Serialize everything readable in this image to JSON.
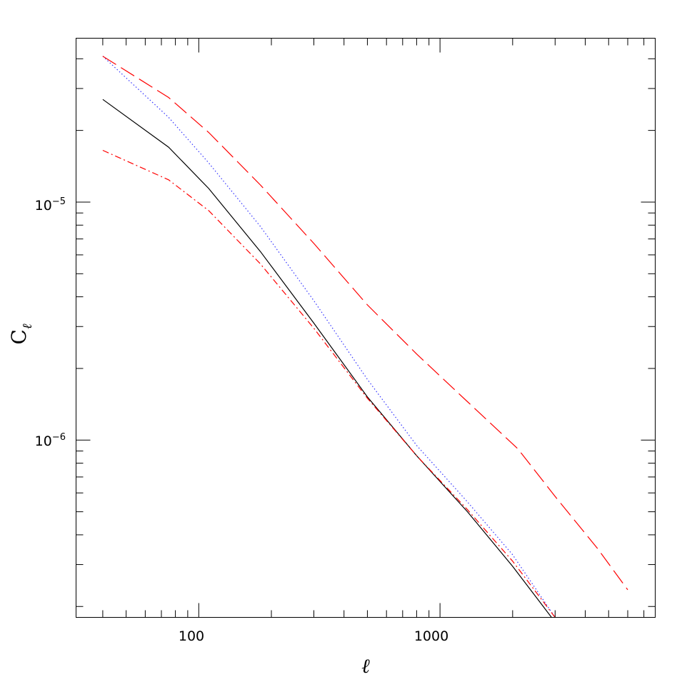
{
  "chart_data": {
    "type": "line",
    "title": "",
    "xlabel": "ℓ",
    "ylabel_main": "C",
    "ylabel_sub": "ℓ",
    "xscale": "log",
    "yscale": "log",
    "xlim": [
      31,
      7800
    ],
    "ylim": [
      1.8e-07,
      4.88e-05
    ],
    "x_tick_labels": [
      {
        "value": 100,
        "label": "100"
      },
      {
        "value": 1000,
        "label": "1000"
      }
    ],
    "y_tick_labels": [
      {
        "value": 1e-05,
        "base": "10",
        "exp": "−5"
      },
      {
        "value": 1e-06,
        "base": "10",
        "exp": "−6"
      }
    ],
    "grid": false,
    "legend": "none",
    "series": [
      {
        "style": "solid",
        "color": "#000000",
        "x": [
          40,
          75,
          110,
          180,
          300,
          500,
          800,
          1300,
          2000,
          2900
        ],
        "y": [
          2.7e-05,
          1.7e-05,
          1.14e-05,
          6.2e-06,
          3.1e-06,
          1.52e-06,
          8.6e-07,
          5e-07,
          2.95e-07,
          1.8e-07
        ]
      },
      {
        "style": "dotted",
        "color": "#3333ff",
        "x": [
          40,
          75,
          110,
          180,
          300,
          500,
          800,
          1300,
          2000,
          3000
        ],
        "y": [
          4.1e-05,
          2.27e-05,
          1.46e-05,
          7.9e-06,
          3.85e-06,
          1.8e-06,
          9.5e-07,
          5.5e-07,
          3.3e-07,
          1.8e-07
        ]
      },
      {
        "style": "long-dash",
        "color": "#ff0000",
        "x": [
          40,
          75,
          110,
          180,
          300,
          500,
          800,
          1300,
          2100,
          3000,
          4500,
          6000
        ],
        "y": [
          4.1e-05,
          2.75e-05,
          1.96e-05,
          1.18e-05,
          6.7e-06,
          3.7e-06,
          2.3e-06,
          1.45e-06,
          9.2e-07,
          5.8e-07,
          3.5e-07,
          2.35e-07
        ]
      },
      {
        "style": "dash-dot",
        "color": "#ff0000",
        "x": [
          40,
          75,
          110,
          180,
          300,
          500,
          800,
          1300,
          2000,
          3000
        ],
        "y": [
          1.65e-05,
          1.24e-05,
          9.2e-06,
          5.5e-06,
          2.95e-06,
          1.5e-06,
          8.6e-07,
          5.1e-07,
          3.1e-07,
          1.8e-07
        ]
      }
    ]
  }
}
